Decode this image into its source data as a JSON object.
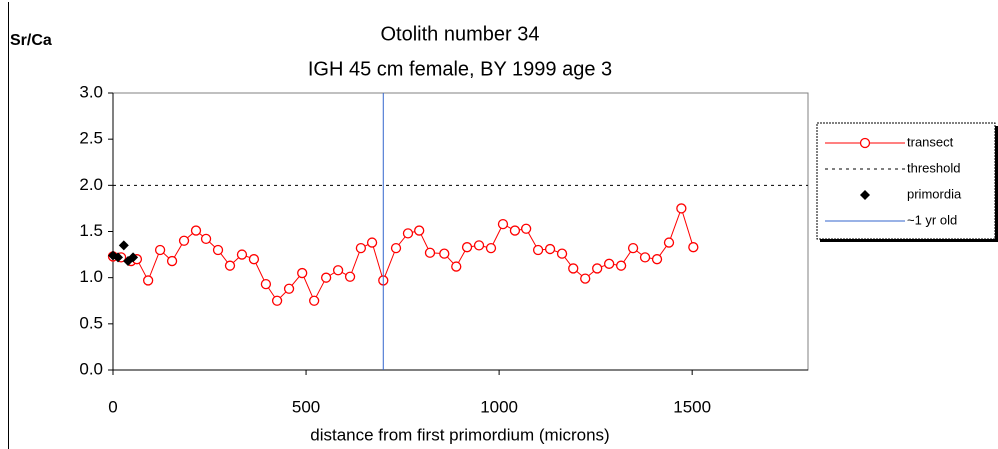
{
  "chart_data": {
    "type": "scatter",
    "title": "Otolith number 34",
    "subtitle": "IGH 45 cm female, BY 1999 age 3",
    "y_label": "Sr/Ca",
    "x_label": "distance from first primordium (microns)",
    "xlim": [
      0,
      1800
    ],
    "ylim": [
      0,
      3
    ],
    "xticks": [
      0,
      500,
      1000,
      1500
    ],
    "yticks": [
      {
        "value": 0,
        "label": "0.0"
      },
      {
        "value": 0.5,
        "label": "0.5"
      },
      {
        "value": 1,
        "label": "1.0"
      },
      {
        "value": 1.5,
        "label": "1.5"
      },
      {
        "value": 2,
        "label": "2.0"
      },
      {
        "value": 2.5,
        "label": "2.5"
      },
      {
        "value": 3,
        "label": "3.0"
      }
    ],
    "legend": "right",
    "series": [
      {
        "name": "transect",
        "color": "#ff0000",
        "marker": "circle",
        "line": "solid",
        "x": [
          0,
          21,
          47,
          62,
          91,
          122,
          153,
          184,
          215,
          241,
          272,
          303,
          334,
          365,
          396,
          425,
          456,
          490,
          521,
          552,
          583,
          614,
          642,
          671,
          700,
          733,
          764,
          793,
          821,
          858,
          889,
          917,
          948,
          979,
          1010,
          1041,
          1070,
          1101,
          1132,
          1163,
          1192,
          1223,
          1254,
          1285,
          1316,
          1347,
          1378,
          1409,
          1440,
          1472,
          1503
        ],
        "values": [
          1.23,
          1.22,
          1.18,
          1.2,
          0.97,
          1.3,
          1.18,
          1.4,
          1.51,
          1.42,
          1.3,
          1.13,
          1.25,
          1.2,
          0.93,
          0.75,
          0.88,
          1.05,
          0.75,
          1.0,
          1.08,
          1.01,
          1.32,
          1.38,
          0.97,
          1.32,
          1.48,
          1.51,
          1.27,
          1.26,
          1.12,
          1.33,
          1.35,
          1.32,
          1.58,
          1.51,
          1.53,
          1.3,
          1.31,
          1.26,
          1.1,
          0.99,
          1.1,
          1.15,
          1.13,
          1.32,
          1.22,
          1.2,
          1.38,
          1.75,
          1.33
        ]
      },
      {
        "name": "threshold",
        "color": "#000000",
        "marker": "none",
        "line": "dotted",
        "x": [
          0,
          1800
        ],
        "values": [
          2,
          2
        ]
      },
      {
        "name": "primordia",
        "color": "#000000",
        "marker": "diamond",
        "line": "none",
        "x": [
          0,
          13,
          28,
          39,
          52
        ],
        "values": [
          1.24,
          1.22,
          1.35,
          1.18,
          1.22
        ]
      },
      {
        "name": "~1 yr old",
        "color": "#3366cc",
        "marker": "none",
        "line": "solid",
        "x": [
          700,
          700
        ],
        "values": [
          0,
          3
        ]
      }
    ]
  }
}
